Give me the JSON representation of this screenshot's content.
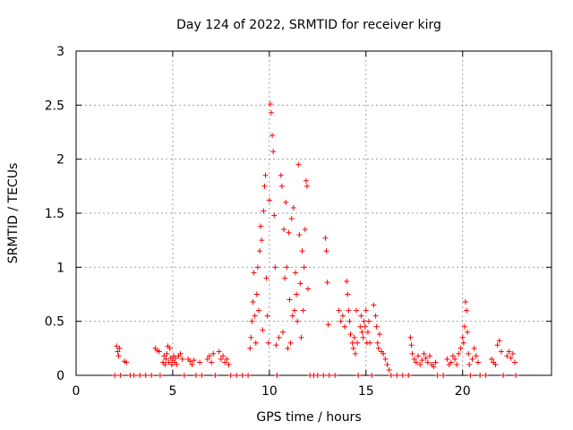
{
  "chart_data": {
    "type": "scatter",
    "title": "Day 124 of 2022, SRMTID for receiver kirg",
    "xlabel": "GPS time / hours",
    "ylabel": "SRMTID / TECUs",
    "xlim": [
      0,
      24.6
    ],
    "ylim": [
      0,
      3
    ],
    "xticks": [
      0,
      5,
      10,
      15,
      20
    ],
    "xtick_labels": [
      "0",
      "5",
      "10",
      "15",
      "20"
    ],
    "yticks": [
      0,
      0.5,
      1,
      1.5,
      2,
      2.5,
      3
    ],
    "ytick_labels": [
      "0",
      "0.5",
      "1",
      "1.5",
      "2",
      "2.5",
      "3"
    ],
    "grid": true,
    "marker": "plus",
    "color": "#ff0000",
    "series": [
      {
        "name": "SRMTID",
        "points": [
          [
            2.0,
            0.0
          ],
          [
            2.1,
            0.27
          ],
          [
            2.15,
            0.22
          ],
          [
            2.2,
            0.18
          ],
          [
            2.25,
            0.25
          ],
          [
            2.3,
            0.0
          ],
          [
            2.5,
            0.13
          ],
          [
            2.6,
            0.12
          ],
          [
            2.8,
            0.0
          ],
          [
            3.0,
            0.0
          ],
          [
            3.3,
            0.0
          ],
          [
            3.6,
            0.0
          ],
          [
            3.9,
            0.0
          ],
          [
            4.1,
            0.25
          ],
          [
            4.2,
            0.23
          ],
          [
            4.3,
            0.22
          ],
          [
            4.35,
            0.0
          ],
          [
            4.5,
            0.12
          ],
          [
            4.55,
            0.18
          ],
          [
            4.6,
            0.1
          ],
          [
            4.65,
            0.15
          ],
          [
            4.7,
            0.2
          ],
          [
            4.75,
            0.27
          ],
          [
            4.8,
            0.12
          ],
          [
            4.85,
            0.25
          ],
          [
            4.9,
            0.16
          ],
          [
            4.95,
            0.1
          ],
          [
            5.0,
            0.14
          ],
          [
            5.05,
            0.18
          ],
          [
            5.1,
            0.12
          ],
          [
            5.15,
            0.16
          ],
          [
            5.2,
            0.1
          ],
          [
            5.3,
            0.18
          ],
          [
            5.4,
            0.2
          ],
          [
            5.5,
            0.15
          ],
          [
            5.6,
            0.0
          ],
          [
            5.8,
            0.15
          ],
          [
            5.9,
            0.13
          ],
          [
            6.0,
            0.1
          ],
          [
            6.1,
            0.14
          ],
          [
            6.2,
            0.0
          ],
          [
            6.4,
            0.12
          ],
          [
            6.5,
            0.0
          ],
          [
            6.8,
            0.15
          ],
          [
            6.9,
            0.18
          ],
          [
            7.0,
            0.12
          ],
          [
            7.1,
            0.2
          ],
          [
            7.2,
            0.0
          ],
          [
            7.4,
            0.22
          ],
          [
            7.5,
            0.15
          ],
          [
            7.6,
            0.18
          ],
          [
            7.7,
            0.12
          ],
          [
            7.8,
            0.15
          ],
          [
            7.9,
            0.1
          ],
          [
            8.0,
            0.0
          ],
          [
            8.3,
            0.0
          ],
          [
            8.6,
            0.0
          ],
          [
            8.9,
            0.0
          ],
          [
            9.0,
            0.25
          ],
          [
            9.05,
            0.35
          ],
          [
            9.1,
            0.5
          ],
          [
            9.15,
            0.68
          ],
          [
            9.2,
            0.95
          ],
          [
            9.25,
            0.55
          ],
          [
            9.3,
            0.3
          ],
          [
            9.35,
            0.75
          ],
          [
            9.4,
            1.0
          ],
          [
            9.45,
            0.6
          ],
          [
            9.5,
            1.15
          ],
          [
            9.55,
            1.38
          ],
          [
            9.6,
            1.25
          ],
          [
            9.65,
            0.42
          ],
          [
            9.7,
            1.52
          ],
          [
            9.75,
            1.75
          ],
          [
            9.8,
            1.85
          ],
          [
            9.85,
            0.9
          ],
          [
            9.9,
            0.55
          ],
          [
            9.95,
            0.3
          ],
          [
            10.0,
            1.62
          ],
          [
            10.05,
            2.51
          ],
          [
            10.1,
            2.43
          ],
          [
            10.15,
            2.22
          ],
          [
            10.2,
            2.07
          ],
          [
            10.25,
            1.48
          ],
          [
            10.3,
            1.0
          ],
          [
            10.35,
            0.28
          ],
          [
            10.4,
            0.0
          ],
          [
            10.5,
            0.35
          ],
          [
            10.6,
            1.85
          ],
          [
            10.65,
            1.75
          ],
          [
            10.7,
            0.4
          ],
          [
            10.75,
            1.35
          ],
          [
            10.8,
            0.9
          ],
          [
            10.85,
            1.6
          ],
          [
            10.9,
            1.0
          ],
          [
            10.95,
            0.25
          ],
          [
            11.0,
            1.32
          ],
          [
            11.05,
            0.7
          ],
          [
            11.1,
            0.3
          ],
          [
            11.15,
            1.45
          ],
          [
            11.2,
            0.55
          ],
          [
            11.25,
            1.55
          ],
          [
            11.3,
            0.6
          ],
          [
            11.35,
            0.95
          ],
          [
            11.4,
            0.75
          ],
          [
            11.45,
            0.5
          ],
          [
            11.5,
            1.95
          ],
          [
            11.55,
            1.3
          ],
          [
            11.6,
            0.85
          ],
          [
            11.65,
            0.35
          ],
          [
            11.7,
            1.15
          ],
          [
            11.75,
            0.6
          ],
          [
            11.8,
            1.0
          ],
          [
            11.85,
            1.35
          ],
          [
            11.9,
            1.8
          ],
          [
            11.95,
            1.75
          ],
          [
            12.0,
            0.8
          ],
          [
            12.1,
            0.0
          ],
          [
            12.3,
            0.0
          ],
          [
            12.5,
            0.0
          ],
          [
            12.8,
            0.0
          ],
          [
            12.9,
            1.27
          ],
          [
            12.95,
            1.15
          ],
          [
            13.0,
            0.86
          ],
          [
            13.05,
            0.47
          ],
          [
            13.1,
            0.0
          ],
          [
            13.4,
            0.0
          ],
          [
            13.6,
            0.6
          ],
          [
            13.7,
            0.5
          ],
          [
            13.8,
            0.55
          ],
          [
            13.9,
            0.45
          ],
          [
            14.0,
            0.87
          ],
          [
            14.05,
            0.75
          ],
          [
            14.1,
            0.6
          ],
          [
            14.15,
            0.5
          ],
          [
            14.2,
            0.38
          ],
          [
            14.3,
            0.3
          ],
          [
            14.35,
            0.25
          ],
          [
            14.4,
            0.35
          ],
          [
            14.45,
            0.2
          ],
          [
            14.5,
            0.6
          ],
          [
            14.55,
            0.3
          ],
          [
            14.6,
            0.0
          ],
          [
            14.7,
            0.45
          ],
          [
            14.75,
            0.55
          ],
          [
            14.8,
            0.4
          ],
          [
            14.85,
            0.35
          ],
          [
            14.9,
            0.5
          ],
          [
            14.95,
            0.45
          ],
          [
            15.0,
            0.6
          ],
          [
            15.05,
            0.3
          ],
          [
            15.1,
            0.4
          ],
          [
            15.15,
            0.5
          ],
          [
            15.2,
            0.3
          ],
          [
            15.3,
            0.0
          ],
          [
            15.4,
            0.65
          ],
          [
            15.5,
            0.55
          ],
          [
            15.55,
            0.45
          ],
          [
            15.6,
            0.3
          ],
          [
            15.65,
            0.25
          ],
          [
            15.7,
            0.38
          ],
          [
            15.8,
            0.22
          ],
          [
            15.9,
            0.2
          ],
          [
            16.0,
            0.15
          ],
          [
            16.1,
            0.1
          ],
          [
            16.2,
            0.05
          ],
          [
            16.3,
            0.0
          ],
          [
            16.6,
            0.0
          ],
          [
            16.9,
            0.0
          ],
          [
            17.2,
            0.0
          ],
          [
            17.3,
            0.35
          ],
          [
            17.35,
            0.28
          ],
          [
            17.4,
            0.2
          ],
          [
            17.5,
            0.15
          ],
          [
            17.6,
            0.12
          ],
          [
            17.7,
            0.18
          ],
          [
            17.8,
            0.1
          ],
          [
            17.9,
            0.14
          ],
          [
            18.0,
            0.2
          ],
          [
            18.1,
            0.16
          ],
          [
            18.2,
            0.12
          ],
          [
            18.3,
            0.18
          ],
          [
            18.4,
            0.1
          ],
          [
            18.5,
            0.08
          ],
          [
            18.6,
            0.12
          ],
          [
            18.7,
            0.0
          ],
          [
            19.0,
            0.0
          ],
          [
            19.2,
            0.15
          ],
          [
            19.3,
            0.1
          ],
          [
            19.4,
            0.12
          ],
          [
            19.5,
            0.18
          ],
          [
            19.6,
            0.15
          ],
          [
            19.7,
            0.1
          ],
          [
            19.8,
            0.2
          ],
          [
            19.9,
            0.25
          ],
          [
            20.0,
            0.35
          ],
          [
            20.05,
            0.3
          ],
          [
            20.1,
            0.45
          ],
          [
            20.15,
            0.68
          ],
          [
            20.2,
            0.6
          ],
          [
            20.25,
            0.4
          ],
          [
            20.3,
            0.2
          ],
          [
            20.35,
            0.1
          ],
          [
            20.4,
            0.0
          ],
          [
            20.5,
            0.15
          ],
          [
            20.6,
            0.25
          ],
          [
            20.7,
            0.18
          ],
          [
            20.8,
            0.12
          ],
          [
            20.9,
            0.0
          ],
          [
            21.2,
            0.0
          ],
          [
            21.5,
            0.15
          ],
          [
            21.6,
            0.12
          ],
          [
            21.7,
            0.1
          ],
          [
            21.8,
            0.28
          ],
          [
            21.9,
            0.32
          ],
          [
            22.0,
            0.22
          ],
          [
            22.1,
            0.0
          ],
          [
            22.3,
            0.18
          ],
          [
            22.4,
            0.22
          ],
          [
            22.5,
            0.16
          ],
          [
            22.6,
            0.2
          ],
          [
            22.7,
            0.12
          ],
          [
            22.75,
            0.0
          ]
        ]
      }
    ]
  }
}
